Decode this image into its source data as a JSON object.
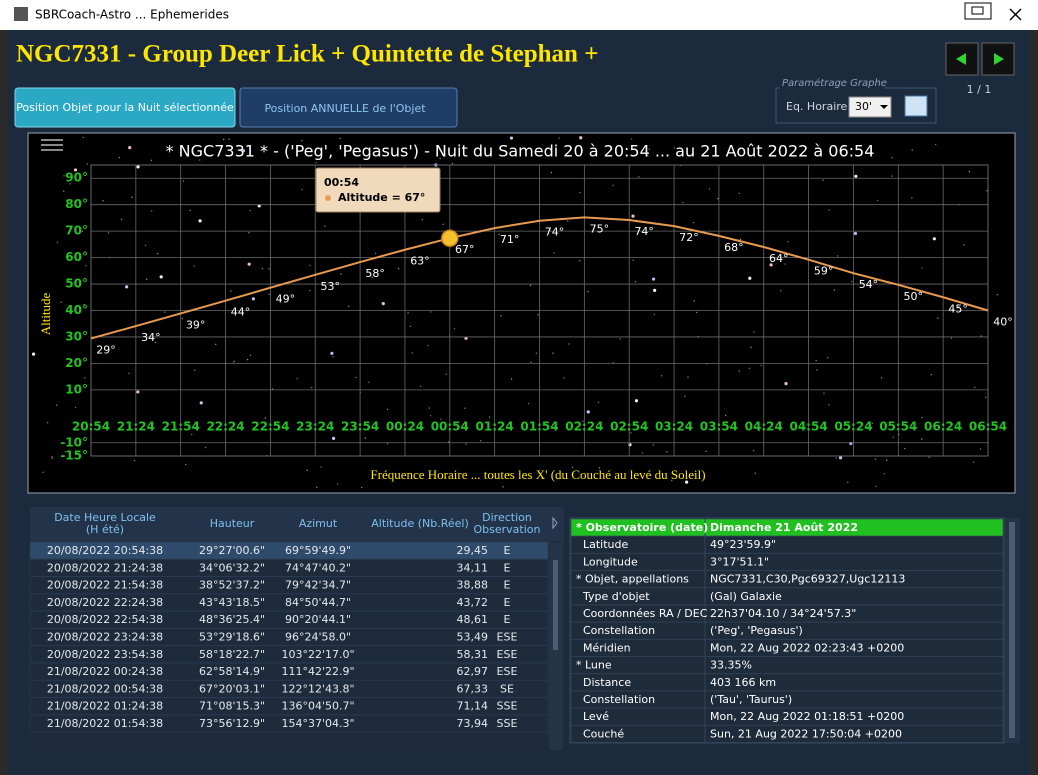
{
  "window": {
    "title": "SBRCoach-Astro ... Ephemerides"
  },
  "header": {
    "title": "NGC7331 - Group Deer Lick + Quintette de Stephan +",
    "page": "1 / 1"
  },
  "tabs": [
    "Position Objet pour la Nuit sélectionnée",
    "Position ANNUELLE de l'Objet"
  ],
  "settings": {
    "legend": "Paramétrage Graphe",
    "label": "Eq. Horaire",
    "value": "30'"
  },
  "chart_data": {
    "type": "line",
    "title": "* NGC7331 * - ('Peg', 'Pegasus') - Nuit du Samedi 20 à 20:54 ... au 21 Août 2022 à 06:54",
    "x_label": "Fréquence Horaire ... toutes les X' (du Couché au levé du Soleil)",
    "y_label": "Altitude",
    "categories": [
      "20:54",
      "21:24",
      "21:54",
      "22:24",
      "22:54",
      "23:24",
      "23:54",
      "00:24",
      "00:54",
      "01:24",
      "01:54",
      "02:24",
      "02:54",
      "03:24",
      "03:54",
      "04:24",
      "04:54",
      "05:24",
      "05:54",
      "06:24",
      "06:54"
    ],
    "values": [
      29.45,
      34.11,
      38.88,
      43.72,
      48.61,
      53.49,
      58.31,
      62.97,
      67.33,
      71.14,
      73.94,
      75.2,
      74.2,
      71.9,
      68.2,
      64.0,
      59.2,
      54.1,
      49.7,
      45.0,
      40.0
    ],
    "value_labels": [
      "29°",
      "34°",
      "39°",
      "44°",
      "49°",
      "53°",
      "58°",
      "63°",
      "67°",
      "71°",
      "74°",
      "75°",
      "74°",
      "72°",
      "68°",
      "64°",
      "59°",
      "54°",
      "50°",
      "45°",
      "40°"
    ],
    "color": "#e89a50",
    "ylim": [
      -15,
      95
    ],
    "yticks": [
      {
        "value": 90,
        "label": "90°"
      },
      {
        "value": 80,
        "label": "80°"
      },
      {
        "value": 70,
        "label": "70°"
      },
      {
        "value": 60,
        "label": "60°"
      },
      {
        "value": 50,
        "label": "50°"
      },
      {
        "value": 40,
        "label": "40°"
      },
      {
        "value": 30,
        "label": "30°"
      },
      {
        "value": 20,
        "label": "20°"
      },
      {
        "value": 10,
        "label": "10°"
      },
      {
        "value": -10,
        "label": "-10°"
      },
      {
        "value": -15,
        "label": "-15°"
      }
    ],
    "grid": true,
    "tooltip": {
      "title": "00:54",
      "text": "Altitude = 67°"
    }
  },
  "table": {
    "headers": [
      [
        "Date Heure Locale",
        "(H été)"
      ],
      [
        "Hauteur"
      ],
      [
        "Azimut"
      ],
      [
        "Altitude (Nb.Réel)"
      ],
      [
        "Direction",
        "Observation"
      ]
    ],
    "rows": [
      [
        "20/08/2022 20:54:38",
        "29°27'00.6\"",
        "69°59'49.9\"",
        "29,45",
        "E"
      ],
      [
        "20/08/2022 21:24:38",
        "34°06'32.2\"",
        "74°47'40.2\"",
        "34,11",
        "E"
      ],
      [
        "20/08/2022 21:54:38",
        "38°52'37.2\"",
        "79°42'34.7\"",
        "38,88",
        "E"
      ],
      [
        "20/08/2022 22:24:38",
        "43°43'18.5\"",
        "84°50'44.7\"",
        "43,72",
        "E"
      ],
      [
        "20/08/2022 22:54:38",
        "48°36'25.4\"",
        "90°20'44.1\"",
        "48,61",
        "E"
      ],
      [
        "20/08/2022 23:24:38",
        "53°29'18.6\"",
        "96°24'58.0\"",
        "53,49",
        "ESE"
      ],
      [
        "20/08/2022 23:54:38",
        "58°18'22.7\"",
        "103°22'17.0\"",
        "58,31",
        "ESE"
      ],
      [
        "21/08/2022 00:24:38",
        "62°58'14.9\"",
        "111°42'22.9\"",
        "62,97",
        "ESE"
      ],
      [
        "21/08/2022 00:54:38",
        "67°20'03.1\"",
        "122°12'43.8\"",
        "67,33",
        "SE"
      ],
      [
        "21/08/2022 01:24:38",
        "71°08'15.3\"",
        "136°04'50.7\"",
        "71,14",
        "SSE"
      ],
      [
        "21/08/2022 01:54:38",
        "73°56'12.9\"",
        "154°37'04.3\"",
        "73,94",
        "SSE"
      ]
    ]
  },
  "info": {
    "rows": [
      [
        "* Observatoire (date)",
        "Dimanche 21 Août 2022"
      ],
      [
        "Latitude",
        "49°23'59.9\""
      ],
      [
        "Longitude",
        "3°17'51.1\""
      ],
      [
        "* Objet, appellations",
        "NGC7331,C30,Pgc69327,Ugc12113"
      ],
      [
        "Type d'objet",
        "(Gal) Galaxie"
      ],
      [
        "Coordonnées RA / DEC",
        "22h37'04.10 / 34°24'57.3\""
      ],
      [
        "Constellation",
        "('Peg', 'Pegasus')"
      ],
      [
        "Méridien",
        "Mon, 22 Aug 2022 02:23:43 +0200"
      ],
      [
        "* Lune",
        "33.35%"
      ],
      [
        "Distance",
        "403 166 km"
      ],
      [
        "Constellation",
        "('Tau', 'Taurus')"
      ],
      [
        "Levé",
        "Mon, 22 Aug 2022 01:18:51 +0200"
      ],
      [
        "Couché",
        "Sun, 21 Aug 2022 17:50:04 +0200"
      ]
    ]
  }
}
